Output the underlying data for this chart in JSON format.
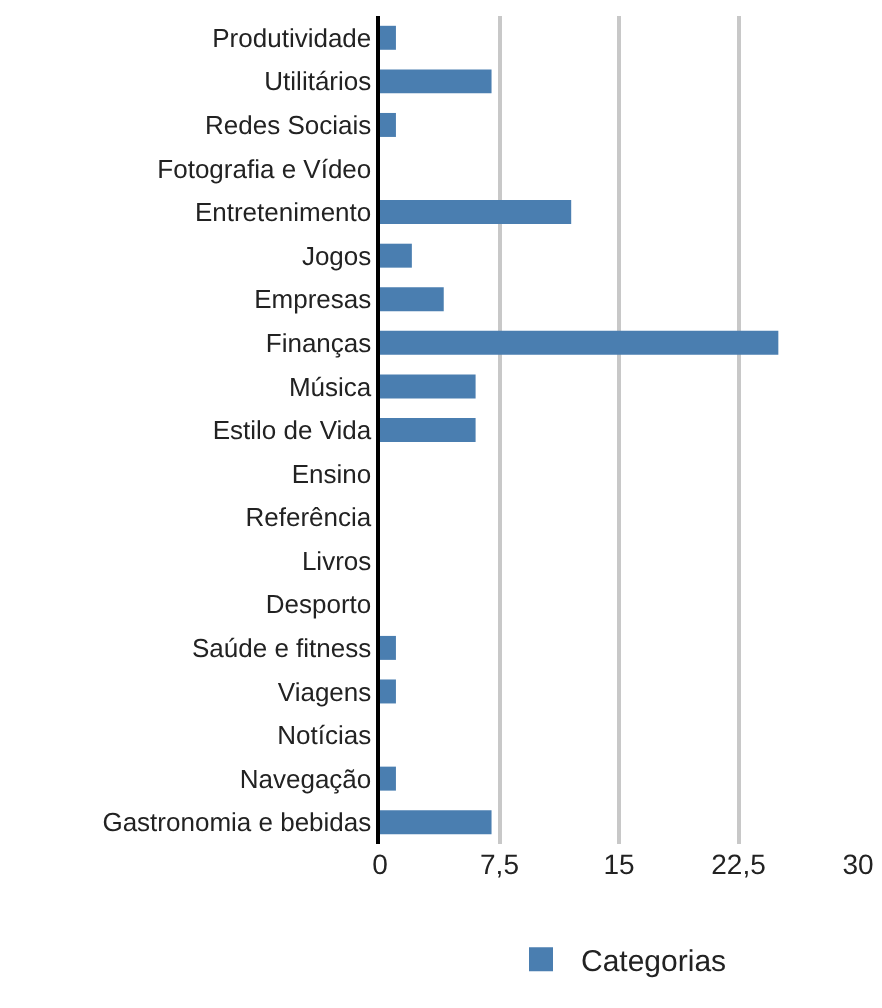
{
  "chart_data": {
    "type": "bar",
    "orientation": "horizontal",
    "categories": [
      "Produtividade",
      "Utilitários",
      "Redes Sociais",
      "Fotografia e Vídeo",
      "Entretenimento",
      "Jogos",
      "Empresas",
      "Finanças",
      "Música",
      "Estilo de Vida",
      "Ensino",
      "Referência",
      "Livros",
      "Desporto",
      "Saúde e fitness",
      "Viagens",
      "Notícias",
      "Navegação",
      "Gastronomia e bebidas"
    ],
    "series": [
      {
        "name": "Categorias",
        "color": "#4a7eb0",
        "values": [
          1,
          7,
          1,
          0,
          12,
          2,
          4,
          25,
          6,
          6,
          0,
          0,
          0,
          0,
          1,
          1,
          0,
          1,
          7
        ]
      }
    ],
    "xlim": [
      0,
      30
    ],
    "xticks": [
      0,
      {
        "value": 7.5,
        "label": "7,5"
      },
      15,
      {
        "value": 22.5,
        "label": "22,5"
      },
      30
    ],
    "grid": "x",
    "legend": "bottom"
  }
}
